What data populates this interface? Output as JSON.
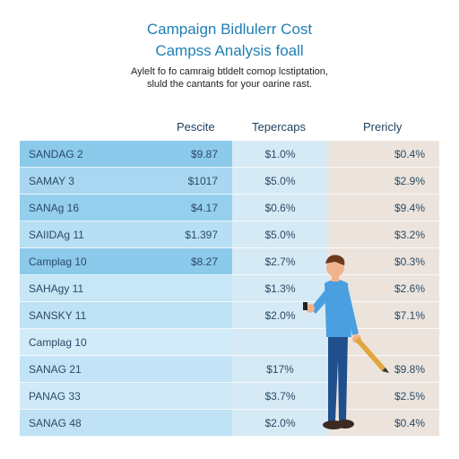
{
  "title": {
    "line1": "Campaign Bidlulerr Cost",
    "line2": "Campss Analysis foall"
  },
  "subtitle": {
    "line1": "Aylelt fo fo camraig btldelt comop lcstiptation,",
    "line2": "sluld the cantants for your oarine rast."
  },
  "columns": [
    "Pescite",
    "Tepercaps",
    "Prericly"
  ],
  "rows": [
    {
      "name": "SANDAG 2",
      "v1": "$9.87",
      "v2": "$1.0%",
      "v3": "$0.4%"
    },
    {
      "name": "SAMAY 3",
      "v1": "$1017",
      "v2": "$5.0%",
      "v3": "$2.9%"
    },
    {
      "name": "SANAg 16",
      "v1": "$4.17",
      "v2": "$0.6%",
      "v3": "$9.4%"
    },
    {
      "name": "SAIIDAg 11",
      "v1": "$1.397",
      "v2": "$5.0%",
      "v3": "$3.2%"
    },
    {
      "name": "Camplag 10",
      "v1": "$8.27",
      "v2": "$2.7%",
      "v3": "$0.3%"
    },
    {
      "name": "SAHAgy 11",
      "v1": "",
      "v2": "$1.3%",
      "v3": "$2.6%"
    },
    {
      "name": "SANSKY 11",
      "v1": "",
      "v2": "$2.0%",
      "v3": "$7.1%"
    },
    {
      "name": "Camplag 10",
      "v1": "",
      "v2": "",
      "v3": ""
    },
    {
      "name": "SANAG 21",
      "v1": "",
      "v2": "$17%",
      "v3": "$9.8%"
    },
    {
      "name": "PANAG 33",
      "v1": "",
      "v2": "$3.7%",
      "v3": "$2.5%"
    },
    {
      "name": "SANAG 48",
      "v1": "",
      "v2": "$2.0%",
      "v3": "$0.4%"
    }
  ],
  "row_colors": [
    "#8ccaec",
    "#a9d7f1",
    "#95cfee",
    "#b7dff3",
    "#8ccaec",
    "#c7e6f6",
    "#bfe2f5",
    "#d2ebf8",
    "#c3e4f6",
    "#cfe9f7",
    "#c0e2f5"
  ],
  "colors": {
    "title": "#1f7fb5",
    "shirt": "#4a9fe0",
    "pants": "#1f4f8c",
    "hair": "#6b3a1e"
  },
  "illustration": "person-with-pen-icon"
}
